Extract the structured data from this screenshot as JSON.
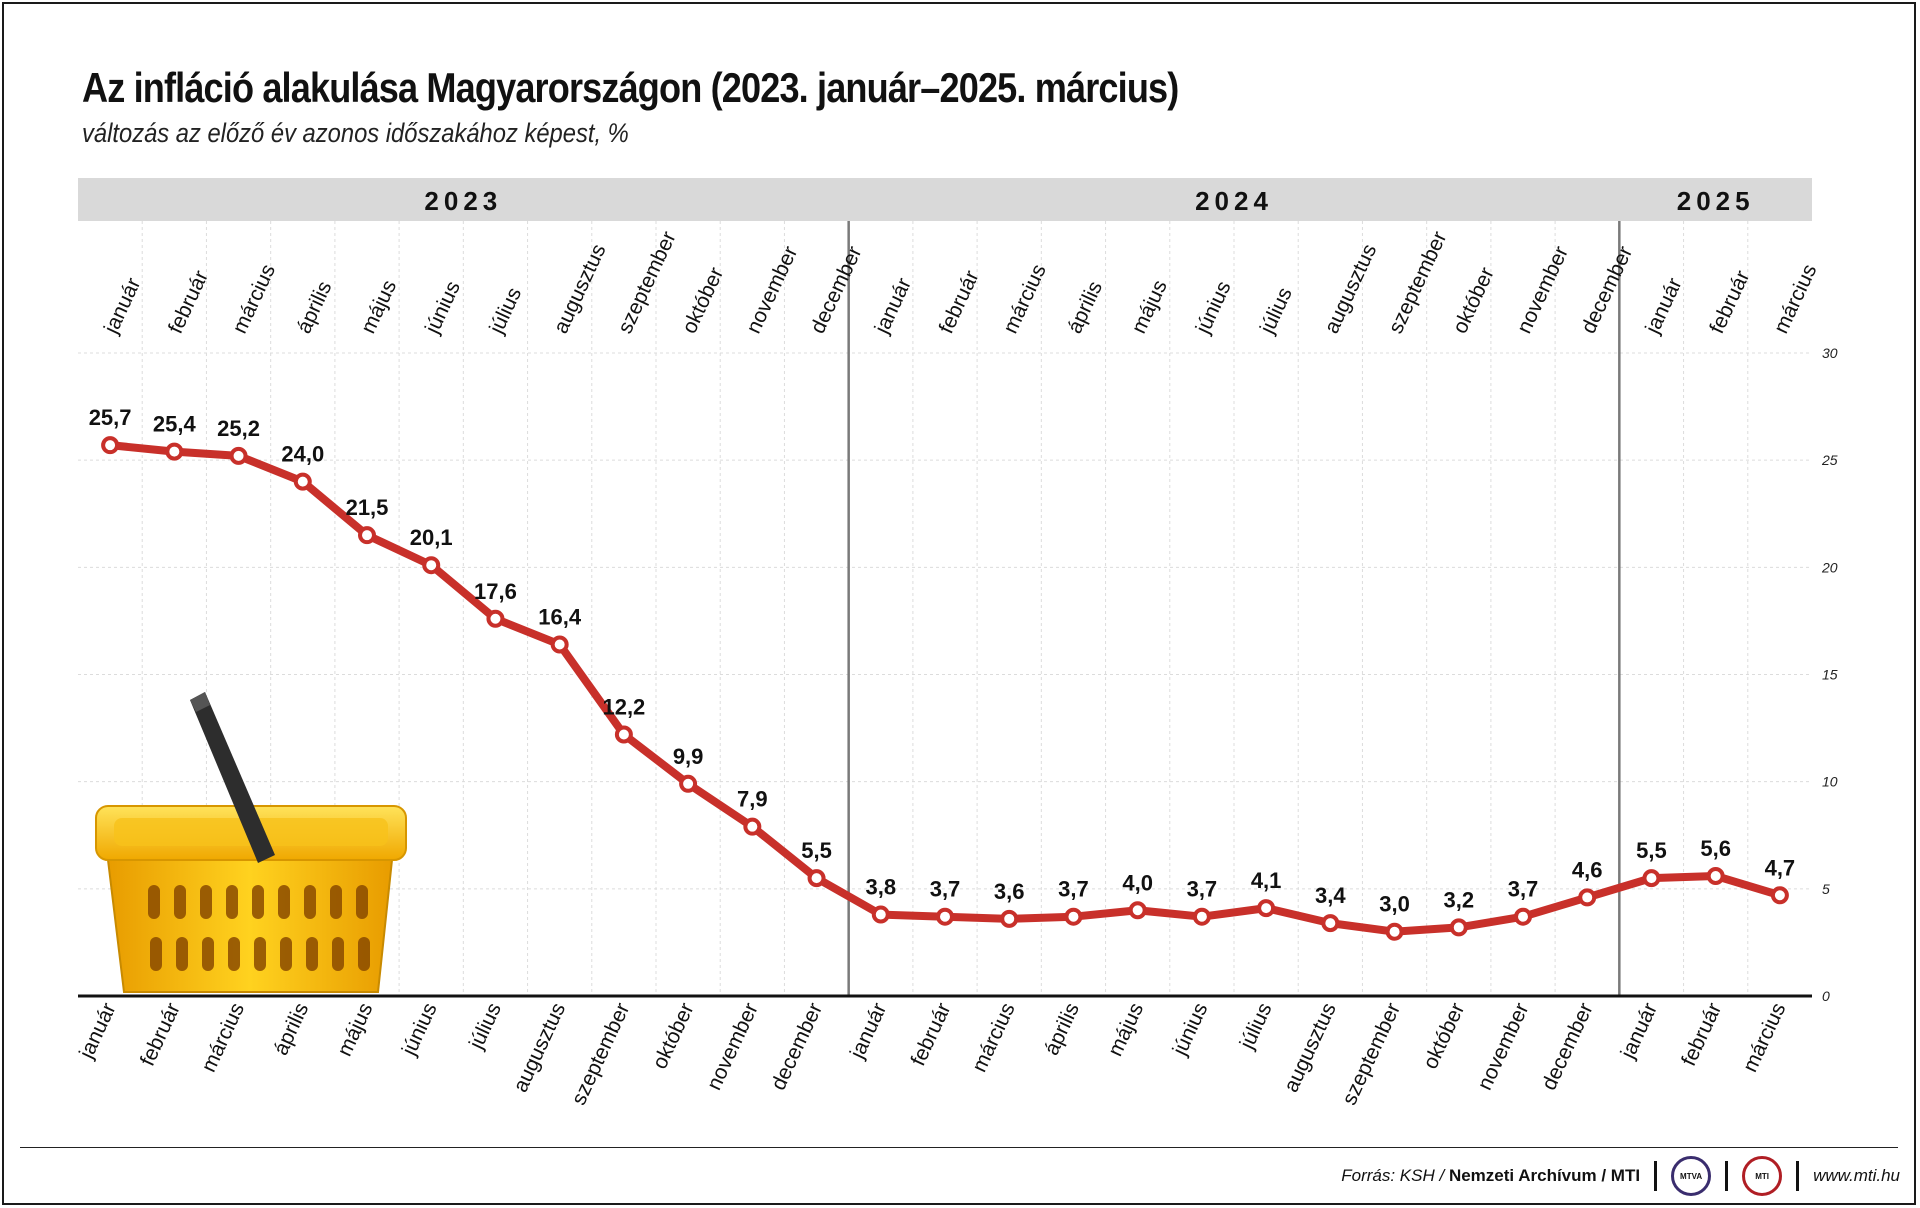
{
  "title": "Az infláció alakulása Magyarországon (2023. január–2025. március)",
  "subtitle": "változás az előző év azonos időszakához képest, %",
  "footer": {
    "source_prefix": "Forrás: KSH / ",
    "source_archive": "Nemzeti Archívum",
    "source_suffix": " / MTI",
    "logo_mtva": "MTVA",
    "logo_mti": "MTI",
    "website": "www.mti.hu"
  },
  "colors": {
    "line": "#c8302a",
    "year_band": "#d9d9d9",
    "basket": "#f5b800"
  },
  "chart_data": {
    "type": "line",
    "title": "Az infláció alakulása Magyarországon (2023. január–2025. március)",
    "ylabel": "",
    "ylim": [
      0,
      30
    ],
    "yticks": [
      0,
      5,
      10,
      15,
      20,
      25,
      30
    ],
    "grid": true,
    "years": [
      {
        "label": "2023",
        "months": 12
      },
      {
        "label": "2024",
        "months": 12
      },
      {
        "label": "2025",
        "months": 3
      }
    ],
    "categories": [
      "január",
      "február",
      "március",
      "április",
      "május",
      "június",
      "július",
      "augusztus",
      "szeptember",
      "október",
      "november",
      "december",
      "január",
      "február",
      "március",
      "április",
      "május",
      "június",
      "július",
      "augusztus",
      "szeptember",
      "október",
      "november",
      "december",
      "január",
      "február",
      "március"
    ],
    "series": [
      {
        "values": [
          25.7,
          25.4,
          25.2,
          24.0,
          21.5,
          20.1,
          17.6,
          16.4,
          12.2,
          9.9,
          7.9,
          5.5,
          3.8,
          3.7,
          3.6,
          3.7,
          4.0,
          3.7,
          4.1,
          3.4,
          3.0,
          3.2,
          3.7,
          4.6,
          5.5,
          5.6,
          4.7
        ],
        "labels": [
          "25,7",
          "25,4",
          "25,2",
          "24,0",
          "21,5",
          "20,1",
          "17,6",
          "16,4",
          "12,2",
          "9,9",
          "7,9",
          "5,5",
          "3,8",
          "3,7",
          "3,6",
          "3,7",
          "4,0",
          "3,7",
          "4,1",
          "3,4",
          "3,0",
          "3,2",
          "3,7",
          "4,6",
          "5,5",
          "5,6",
          "4,7"
        ]
      }
    ]
  }
}
